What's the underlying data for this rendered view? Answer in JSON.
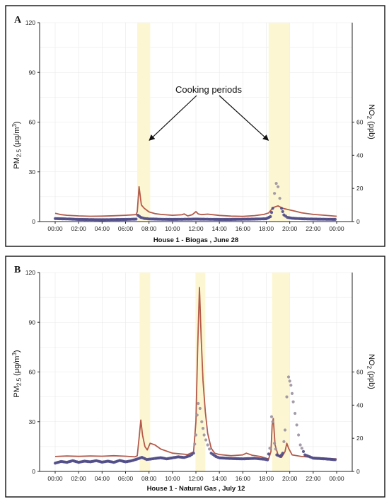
{
  "colors": {
    "no2_line": "#b35a4a",
    "pm25_marker": "#4e4a86",
    "pm25_marker_peak": "#9a92a0",
    "cooking_band": "#fdf6d2"
  },
  "chart_data": [
    {
      "type": "line",
      "panel_label": "A",
      "xlabel": "House 1 - Biogas , June 28",
      "ylabel_left": "PM2.5 (μg/m³)",
      "ylabel_right": "NO2 (ppb)",
      "x_ticks": [
        "00:00",
        "02:00",
        "04:00",
        "06:00",
        "08:00",
        "10:00",
        "12:00",
        "14:00",
        "16:00",
        "18:00",
        "20:00",
        "22:00",
        "00:00"
      ],
      "xlim_hours": [
        0,
        24
      ],
      "ylim_left": [
        0,
        120
      ],
      "yticks_left": [
        "0",
        "30",
        "60",
        "90",
        "120"
      ],
      "ylim_right": [
        0,
        120
      ],
      "yticks_right": [
        "0",
        "20",
        "40",
        "60"
      ],
      "grid": true,
      "cooking_periods_hours": [
        [
          7.0,
          8.1
        ],
        [
          18.2,
          20.0
        ]
      ],
      "annotation": {
        "text": "Cooking periods",
        "arrow_targets_hours": [
          7.9,
          18.3
        ]
      },
      "series": [
        {
          "name": "NO2",
          "axis": "right",
          "style": "line",
          "points": [
            [
              0,
              5
            ],
            [
              0.5,
              4.2
            ],
            [
              1,
              3.8
            ],
            [
              2,
              3.4
            ],
            [
              3,
              3.2
            ],
            [
              4,
              3.3
            ],
            [
              5,
              3.5
            ],
            [
              6,
              3.8
            ],
            [
              6.9,
              4.2
            ],
            [
              7.0,
              6
            ],
            [
              7.15,
              21
            ],
            [
              7.35,
              10
            ],
            [
              7.6,
              8
            ],
            [
              8,
              5.8
            ],
            [
              8.5,
              4.8
            ],
            [
              9,
              4.3
            ],
            [
              10,
              3.8
            ],
            [
              10.8,
              4.1
            ],
            [
              11,
              4.6
            ],
            [
              11.3,
              3.4
            ],
            [
              11.7,
              4.2
            ],
            [
              12,
              6
            ],
            [
              12.2,
              4.6
            ],
            [
              12.5,
              4.2
            ],
            [
              13,
              4.5
            ],
            [
              14,
              3.7
            ],
            [
              15,
              3.3
            ],
            [
              16,
              3.1
            ],
            [
              17,
              3.6
            ],
            [
              17.8,
              4.3
            ],
            [
              18.2,
              5.2
            ],
            [
              18.6,
              8.5
            ],
            [
              19,
              9.5
            ],
            [
              19.4,
              8
            ],
            [
              20,
              7
            ],
            [
              20.5,
              6.2
            ],
            [
              21,
              5.3
            ],
            [
              22,
              4.3
            ],
            [
              23,
              3.8
            ],
            [
              24,
              3.2
            ]
          ]
        },
        {
          "name": "PM2.5",
          "axis": "left",
          "style": "markers",
          "points": [
            [
              0,
              1.8
            ],
            [
              1,
              1.6
            ],
            [
              2,
              1.3
            ],
            [
              3,
              1.2
            ],
            [
              4,
              1.1
            ],
            [
              5,
              1.2
            ],
            [
              6,
              1.3
            ],
            [
              6.9,
              1.5
            ],
            [
              7.05,
              3.8
            ],
            [
              7.3,
              2.5
            ],
            [
              7.6,
              1.9
            ],
            [
              8,
              1.6
            ],
            [
              9,
              1.4
            ],
            [
              10,
              1.3
            ],
            [
              11,
              1.4
            ],
            [
              12,
              1.5
            ],
            [
              13,
              1.4
            ],
            [
              14,
              1.3
            ],
            [
              15,
              1.3
            ],
            [
              16,
              1.4
            ],
            [
              17,
              1.5
            ],
            [
              18,
              1.7
            ],
            [
              18.35,
              3
            ],
            [
              18.55,
              8
            ],
            [
              18.7,
              17
            ],
            [
              18.85,
              23
            ],
            [
              19.0,
              21
            ],
            [
              19.15,
              14
            ],
            [
              19.3,
              8
            ],
            [
              19.5,
              4
            ],
            [
              19.8,
              2.5
            ],
            [
              20.2,
              2
            ],
            [
              21,
              1.7
            ],
            [
              22,
              1.5
            ],
            [
              23,
              1.4
            ],
            [
              24,
              1.3
            ]
          ]
        }
      ]
    },
    {
      "type": "line",
      "panel_label": "B",
      "xlabel": "House 1 - Natural Gas , July 12",
      "ylabel_left": "PM2.5 (μg/m³)",
      "ylabel_right": "NO2 (ppb)",
      "x_ticks": [
        "00:00",
        "02:00",
        "04:00",
        "06:00",
        "08:00",
        "10:00",
        "12:00",
        "14:00",
        "16:00",
        "18:00",
        "20:00",
        "22:00",
        "00:00"
      ],
      "xlim_hours": [
        0,
        24
      ],
      "ylim_left": [
        0,
        120
      ],
      "yticks_left": [
        "0",
        "30",
        "60",
        "90",
        "120"
      ],
      "ylim_right": [
        0,
        120
      ],
      "yticks_right": [
        "0",
        "20",
        "40",
        "60"
      ],
      "grid": true,
      "cooking_periods_hours": [
        [
          7.2,
          8.1
        ],
        [
          12.0,
          12.8
        ],
        [
          18.5,
          20.0
        ]
      ],
      "series": [
        {
          "name": "NO2",
          "axis": "right",
          "style": "line",
          "points": [
            [
              0,
              9
            ],
            [
              1,
              9.3
            ],
            [
              2,
              9.1
            ],
            [
              3,
              9.3
            ],
            [
              4,
              9.2
            ],
            [
              5,
              9.5
            ],
            [
              6,
              9.2
            ],
            [
              6.8,
              8.8
            ],
            [
              7.0,
              9.5
            ],
            [
              7.15,
              20
            ],
            [
              7.3,
              31
            ],
            [
              7.45,
              22
            ],
            [
              7.65,
              15
            ],
            [
              7.85,
              13
            ],
            [
              8.1,
              17
            ],
            [
              8.5,
              16
            ],
            [
              9,
              13.5
            ],
            [
              10,
              11
            ],
            [
              10.8,
              10.5
            ],
            [
              11.3,
              10.2
            ],
            [
              11.8,
              11.8
            ],
            [
              12.0,
              30
            ],
            [
              12.15,
              75
            ],
            [
              12.3,
              111
            ],
            [
              12.45,
              80
            ],
            [
              12.6,
              55
            ],
            [
              12.8,
              36
            ],
            [
              13,
              23
            ],
            [
              13.3,
              14
            ],
            [
              13.6,
              11
            ],
            [
              14,
              10.2
            ],
            [
              15,
              9.5
            ],
            [
              16,
              10
            ],
            [
              16.3,
              11
            ],
            [
              16.8,
              9.8
            ],
            [
              17.5,
              9
            ],
            [
              18.2,
              7.5
            ],
            [
              18.4,
              12
            ],
            [
              18.5,
              28
            ],
            [
              18.6,
              32
            ],
            [
              18.75,
              16
            ],
            [
              19,
              10
            ],
            [
              19.3,
              8.5
            ],
            [
              19.6,
              12
            ],
            [
              19.75,
              17
            ],
            [
              19.9,
              14
            ],
            [
              20.2,
              10
            ],
            [
              21,
              9
            ],
            [
              22,
              8.5
            ],
            [
              23,
              8
            ],
            [
              24,
              7.5
            ]
          ]
        },
        {
          "name": "PM2.5",
          "axis": "left",
          "style": "markers",
          "points": [
            [
              0,
              5
            ],
            [
              0.5,
              6
            ],
            [
              1,
              5.5
            ],
            [
              1.5,
              6.5
            ],
            [
              2,
              5.5
            ],
            [
              2.5,
              6.2
            ],
            [
              3,
              5.8
            ],
            [
              3.5,
              6.5
            ],
            [
              4,
              5.6
            ],
            [
              4.5,
              6.2
            ],
            [
              5,
              5.5
            ],
            [
              5.5,
              6.6
            ],
            [
              6,
              5.8
            ],
            [
              6.5,
              6.4
            ],
            [
              7,
              7.5
            ],
            [
              7.4,
              8.5
            ],
            [
              7.8,
              7.2
            ],
            [
              8.5,
              7.8
            ],
            [
              9,
              8.3
            ],
            [
              9.5,
              7.6
            ],
            [
              10,
              8.2
            ],
            [
              10.5,
              8.8
            ],
            [
              11,
              8.4
            ],
            [
              11.5,
              9.5
            ],
            [
              11.8,
              11
            ],
            [
              12.0,
              22
            ],
            [
              12.1,
              34
            ],
            [
              12.2,
              41
            ],
            [
              12.35,
              38
            ],
            [
              12.5,
              30
            ],
            [
              12.7,
              22
            ],
            [
              13,
              16
            ],
            [
              13.3,
              11
            ],
            [
              13.7,
              9
            ],
            [
              14,
              8.2
            ],
            [
              15,
              7.8
            ],
            [
              16,
              7.6
            ],
            [
              17,
              7.9
            ],
            [
              17.8,
              7.4
            ],
            [
              18.1,
              7
            ],
            [
              18.3,
              14
            ],
            [
              18.45,
              33
            ],
            [
              18.55,
              30
            ],
            [
              18.7,
              17
            ],
            [
              18.9,
              10
            ],
            [
              19.2,
              9
            ],
            [
              19.4,
              11
            ],
            [
              19.6,
              25
            ],
            [
              19.75,
              45
            ],
            [
              19.9,
              57
            ],
            [
              20.1,
              52
            ],
            [
              20.3,
              42
            ],
            [
              20.6,
              28
            ],
            [
              20.9,
              16
            ],
            [
              21.3,
              10
            ],
            [
              22,
              8
            ],
            [
              23,
              7.6
            ],
            [
              24,
              7
            ]
          ]
        }
      ]
    }
  ]
}
